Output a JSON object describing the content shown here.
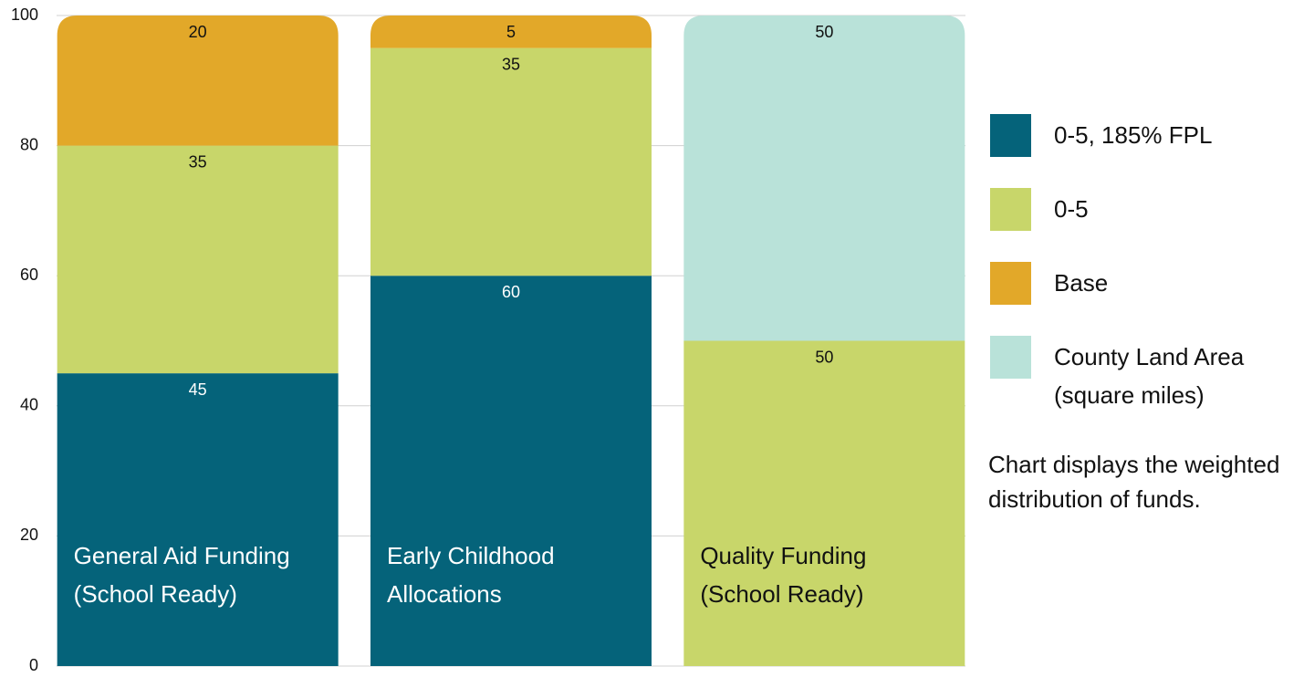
{
  "chart_data": {
    "type": "stacked_bar",
    "note": "Chart displays the weighted distribution of funds.",
    "categories": [
      "General Aid Funding (School Ready)",
      "Early Childhood Allocations",
      "Quality Funding (School Ready)"
    ],
    "series": [
      {
        "name": "0-5, 185% FPL",
        "color": "#05637a",
        "values": [
          45,
          60,
          null
        ]
      },
      {
        "name": "0-5",
        "color": "#c8d66a",
        "values": [
          35,
          35,
          50
        ]
      },
      {
        "name": "Base",
        "color": "#e2a829",
        "values": [
          20,
          5,
          null
        ]
      },
      {
        "name": "County Land Area (square miles)",
        "color": "#b9e2d9",
        "values": [
          null,
          null,
          50
        ]
      }
    ],
    "ylim": [
      0,
      100
    ],
    "yticks": [
      0,
      20,
      40,
      60,
      80,
      100
    ],
    "grid": true,
    "legend": "right"
  }
}
